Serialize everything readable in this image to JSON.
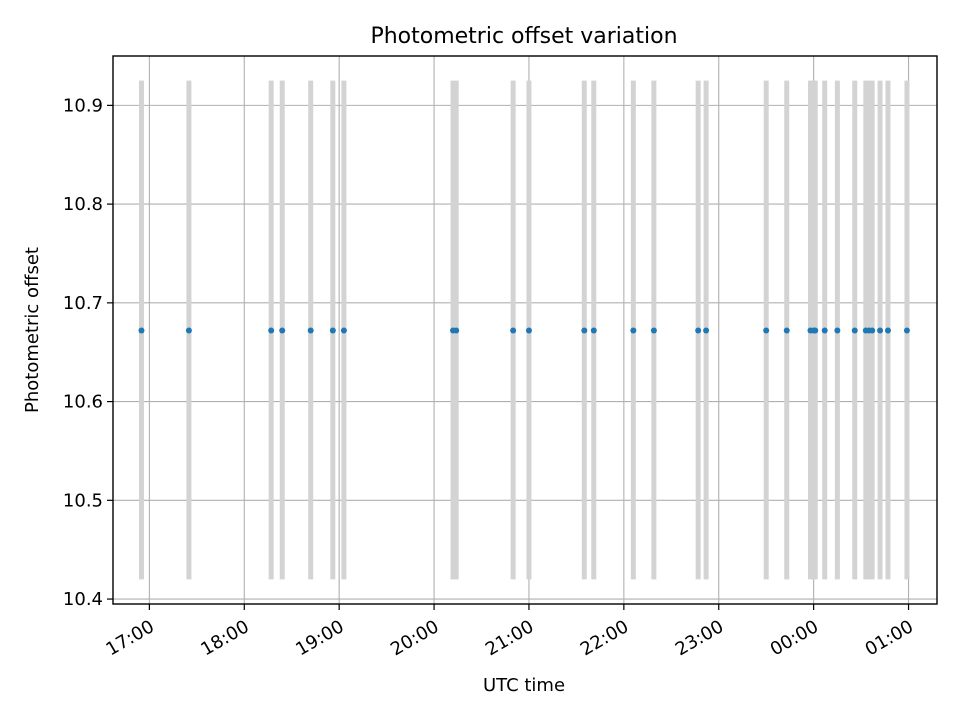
{
  "chart_data": {
    "type": "scatter",
    "title": "Photometric offset variation",
    "xlabel": "UTC time",
    "ylabel": "Photometric offset",
    "x_type": "time",
    "xlim": [
      "16:37",
      "01:18"
    ],
    "ylim": [
      10.395,
      10.95
    ],
    "x_ticks": [
      "17:00",
      "18:00",
      "19:00",
      "20:00",
      "21:00",
      "22:00",
      "23:00",
      "00:00",
      "01:00"
    ],
    "y_ticks": [
      10.4,
      10.5,
      10.6,
      10.7,
      10.8,
      10.9
    ],
    "grid": true,
    "legend": "none",
    "colors": {
      "points": "#1f77b4",
      "error_bars": "#d3d3d3",
      "grid": "#b0b0b0"
    },
    "error_bar": {
      "low": 10.42,
      "high": 10.925
    },
    "series": [
      {
        "x": [
          "16:55",
          "17:25",
          "18:17",
          "18:24",
          "18:42",
          "18:56",
          "19:03",
          "20:12",
          "20:14",
          "20:50",
          "21:00",
          "21:35",
          "21:41",
          "22:06",
          "22:19",
          "22:47",
          "22:52",
          "23:30",
          "23:43",
          "23:58",
          "00:00",
          "00:01",
          "00:07",
          "00:15",
          "00:26",
          "00:33",
          "00:35",
          "00:37",
          "00:42",
          "00:47",
          "00:59"
        ],
        "y": [
          10.672,
          10.672,
          10.672,
          10.672,
          10.672,
          10.672,
          10.672,
          10.672,
          10.672,
          10.672,
          10.672,
          10.672,
          10.672,
          10.672,
          10.672,
          10.672,
          10.672,
          10.672,
          10.672,
          10.672,
          10.672,
          10.672,
          10.672,
          10.672,
          10.672,
          10.672,
          10.672,
          10.672,
          10.672,
          10.672,
          10.672
        ]
      }
    ]
  }
}
